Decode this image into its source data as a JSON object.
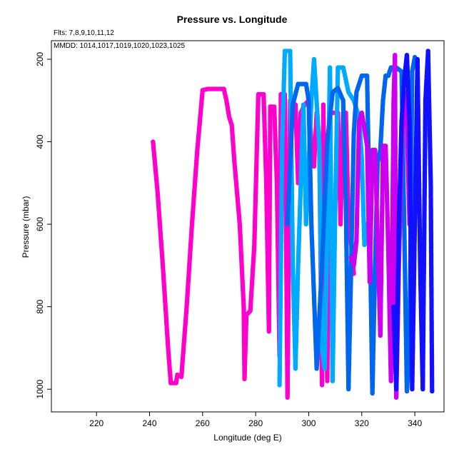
{
  "chart_data": {
    "type": "scatter",
    "title": "Pressure vs. Longitude",
    "xlabel": "Longitude (deg E)",
    "ylabel": "Pressure (mbar)",
    "notes": [
      "Flts: 7,8,9,10,11,12",
      "MMDD: 1014,1017,1019,1020,1023,1025"
    ],
    "xlim": [
      203,
      351
    ],
    "ylim": [
      1055,
      155
    ],
    "y_inverted": true,
    "xticks": [
      220,
      240,
      260,
      280,
      300,
      320,
      340
    ],
    "yticks": [
      200,
      400,
      600,
      800,
      1000
    ],
    "grid": false,
    "series": [
      {
        "color": "#ff00cc",
        "points": [
          [
            241.3,
            400
          ],
          [
            243,
            520
          ],
          [
            245,
            700
          ],
          [
            247,
            900
          ],
          [
            248,
            985
          ],
          [
            250,
            985
          ],
          [
            250.5,
            965
          ],
          [
            252,
            970
          ],
          [
            254,
            800
          ],
          [
            256,
            600
          ],
          [
            258,
            420
          ],
          [
            260,
            275
          ],
          [
            262,
            272
          ],
          [
            268,
            272
          ],
          [
            269,
            300
          ],
          [
            270,
            340
          ],
          [
            271,
            360
          ],
          [
            272,
            450
          ],
          [
            274,
            600
          ],
          [
            275.5,
            800
          ],
          [
            275.8,
            975
          ],
          [
            276.5,
            820
          ],
          [
            278,
            810
          ],
          [
            279.5,
            650
          ],
          [
            281,
            285
          ],
          [
            283,
            285
          ],
          [
            284,
            500
          ],
          [
            285,
            860
          ],
          [
            285.5,
            315
          ],
          [
            287,
            315
          ],
          [
            288,
            500
          ],
          [
            289,
            920
          ],
          [
            289.5,
            285
          ],
          [
            291,
            285
          ],
          [
            292,
            1020
          ],
          [
            293,
            300
          ],
          [
            295,
            310
          ],
          [
            296,
            500
          ],
          [
            297,
            330
          ],
          [
            298.5,
            310
          ],
          [
            300,
            300
          ],
          [
            301,
            400
          ],
          [
            302,
            460
          ],
          [
            303,
            330
          ],
          [
            304,
            400
          ],
          [
            305,
            990
          ],
          [
            305.5,
            310
          ],
          [
            306,
            520
          ],
          [
            307,
            980
          ],
          [
            308,
            330
          ],
          [
            311,
            330
          ],
          [
            312,
            600
          ],
          [
            313,
            330
          ],
          [
            314,
            330
          ],
          [
            315,
            590
          ],
          [
            316,
            650
          ],
          [
            317,
            720
          ]
        ]
      },
      {
        "color": "#00aaff",
        "points": [
          [
            289,
            990
          ],
          [
            290,
            400
          ],
          [
            291,
            180
          ],
          [
            293,
            180
          ],
          [
            294,
            700
          ],
          [
            295,
            950
          ],
          [
            296,
            700
          ],
          [
            298,
            310
          ],
          [
            299,
            600
          ],
          [
            300,
            460
          ],
          [
            301,
            300
          ],
          [
            302,
            200
          ],
          [
            304,
            410
          ],
          [
            305,
            900
          ],
          [
            306,
            950
          ],
          [
            307,
            600
          ],
          [
            308,
            220
          ],
          [
            309,
            980
          ],
          [
            310,
            560
          ],
          [
            311,
            220
          ],
          [
            313,
            220
          ],
          [
            315,
            280
          ],
          [
            317,
            300
          ],
          [
            319,
            340
          ],
          [
            320,
            440
          ],
          [
            321,
            650
          ],
          [
            322,
            600
          ]
        ]
      },
      {
        "color": "#0066ee",
        "points": [
          [
            292,
            600
          ],
          [
            294,
            310
          ],
          [
            296,
            260
          ],
          [
            299,
            260
          ],
          [
            300,
            300
          ],
          [
            301,
            600
          ],
          [
            303,
            950
          ],
          [
            305,
            700
          ],
          [
            307,
            400
          ],
          [
            309,
            280
          ],
          [
            311,
            270
          ],
          [
            313,
            300
          ],
          [
            314,
            550
          ],
          [
            315,
            1000
          ],
          [
            316,
            700
          ],
          [
            317,
            380
          ],
          [
            318,
            280
          ],
          [
            319,
            260
          ],
          [
            320,
            240
          ],
          [
            322,
            240
          ],
          [
            323,
            600
          ],
          [
            324,
            1010
          ],
          [
            325,
            700
          ],
          [
            326,
            450
          ],
          [
            327,
            420
          ],
          [
            328,
            300
          ],
          [
            329,
            240
          ],
          [
            330,
            240
          ],
          [
            331,
            220
          ],
          [
            333,
            220
          ],
          [
            335,
            230
          ],
          [
            336,
            600
          ],
          [
            337,
            1005
          ],
          [
            338,
            900
          ],
          [
            339,
            230
          ],
          [
            340,
            195
          ]
        ]
      },
      {
        "color": "#cc00ee",
        "points": [
          [
            316,
            680
          ],
          [
            317,
            700
          ],
          [
            318,
            640
          ],
          [
            319,
            350
          ],
          [
            320,
            330
          ],
          [
            322,
            410
          ],
          [
            323,
            740
          ],
          [
            324,
            420
          ],
          [
            325,
            420
          ],
          [
            326,
            640
          ],
          [
            327,
            870
          ],
          [
            328,
            410
          ],
          [
            329,
            410
          ],
          [
            330,
            660
          ],
          [
            331,
            980
          ],
          [
            332,
            300
          ],
          [
            332.5,
            190
          ],
          [
            333,
            1020
          ],
          [
            334,
            700
          ],
          [
            335,
            410
          ],
          [
            336,
            280
          ],
          [
            337,
            350
          ],
          [
            338,
            600
          ]
        ]
      },
      {
        "color": "#1111ff",
        "points": [
          [
            332,
            800
          ],
          [
            333,
            1000
          ],
          [
            334,
            600
          ],
          [
            335,
            350
          ],
          [
            336,
            250
          ],
          [
            337,
            190
          ],
          [
            338,
            350
          ],
          [
            339,
            1000
          ],
          [
            340,
            600
          ],
          [
            341,
            200
          ],
          [
            342,
            700
          ],
          [
            343,
            1000
          ],
          [
            344,
            300
          ],
          [
            345,
            180
          ],
          [
            346,
            500
          ],
          [
            346.5,
            1005
          ]
        ]
      }
    ]
  }
}
